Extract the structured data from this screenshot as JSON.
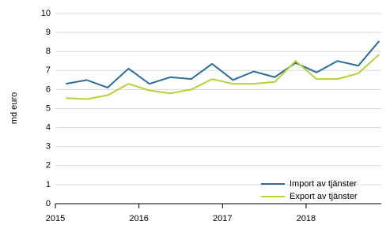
{
  "chart_data": {
    "type": "line",
    "y_label": "md euro",
    "x": [
      2015.125,
      2015.375,
      2015.625,
      2015.875,
      2016.125,
      2016.375,
      2016.625,
      2016.875,
      2017.125,
      2017.375,
      2017.625,
      2017.875,
      2018.125,
      2018.375,
      2018.625,
      2018.875
    ],
    "xlim": [
      2015,
      2018.9
    ],
    "xticks": [
      2015,
      2016,
      2017,
      2018
    ],
    "ylim": [
      0,
      10
    ],
    "yticks": [
      0,
      1,
      2,
      3,
      4,
      5,
      6,
      7,
      8,
      9,
      10
    ],
    "grid": true,
    "legend": "lower right",
    "series": [
      {
        "name": "Import av tjänster",
        "color": "#2a6e9b",
        "values": [
          6.3,
          6.5,
          6.1,
          7.1,
          6.3,
          6.65,
          6.55,
          7.35,
          6.5,
          6.95,
          6.65,
          7.4,
          6.9,
          7.5,
          7.25,
          8.55
        ]
      },
      {
        "name": "Export av tjänster",
        "color": "#b5d334",
        "values": [
          5.55,
          5.5,
          5.7,
          6.3,
          5.95,
          5.8,
          6.0,
          6.55,
          6.3,
          6.3,
          6.4,
          7.5,
          6.55,
          6.55,
          6.85,
          7.85
        ]
      }
    ]
  }
}
